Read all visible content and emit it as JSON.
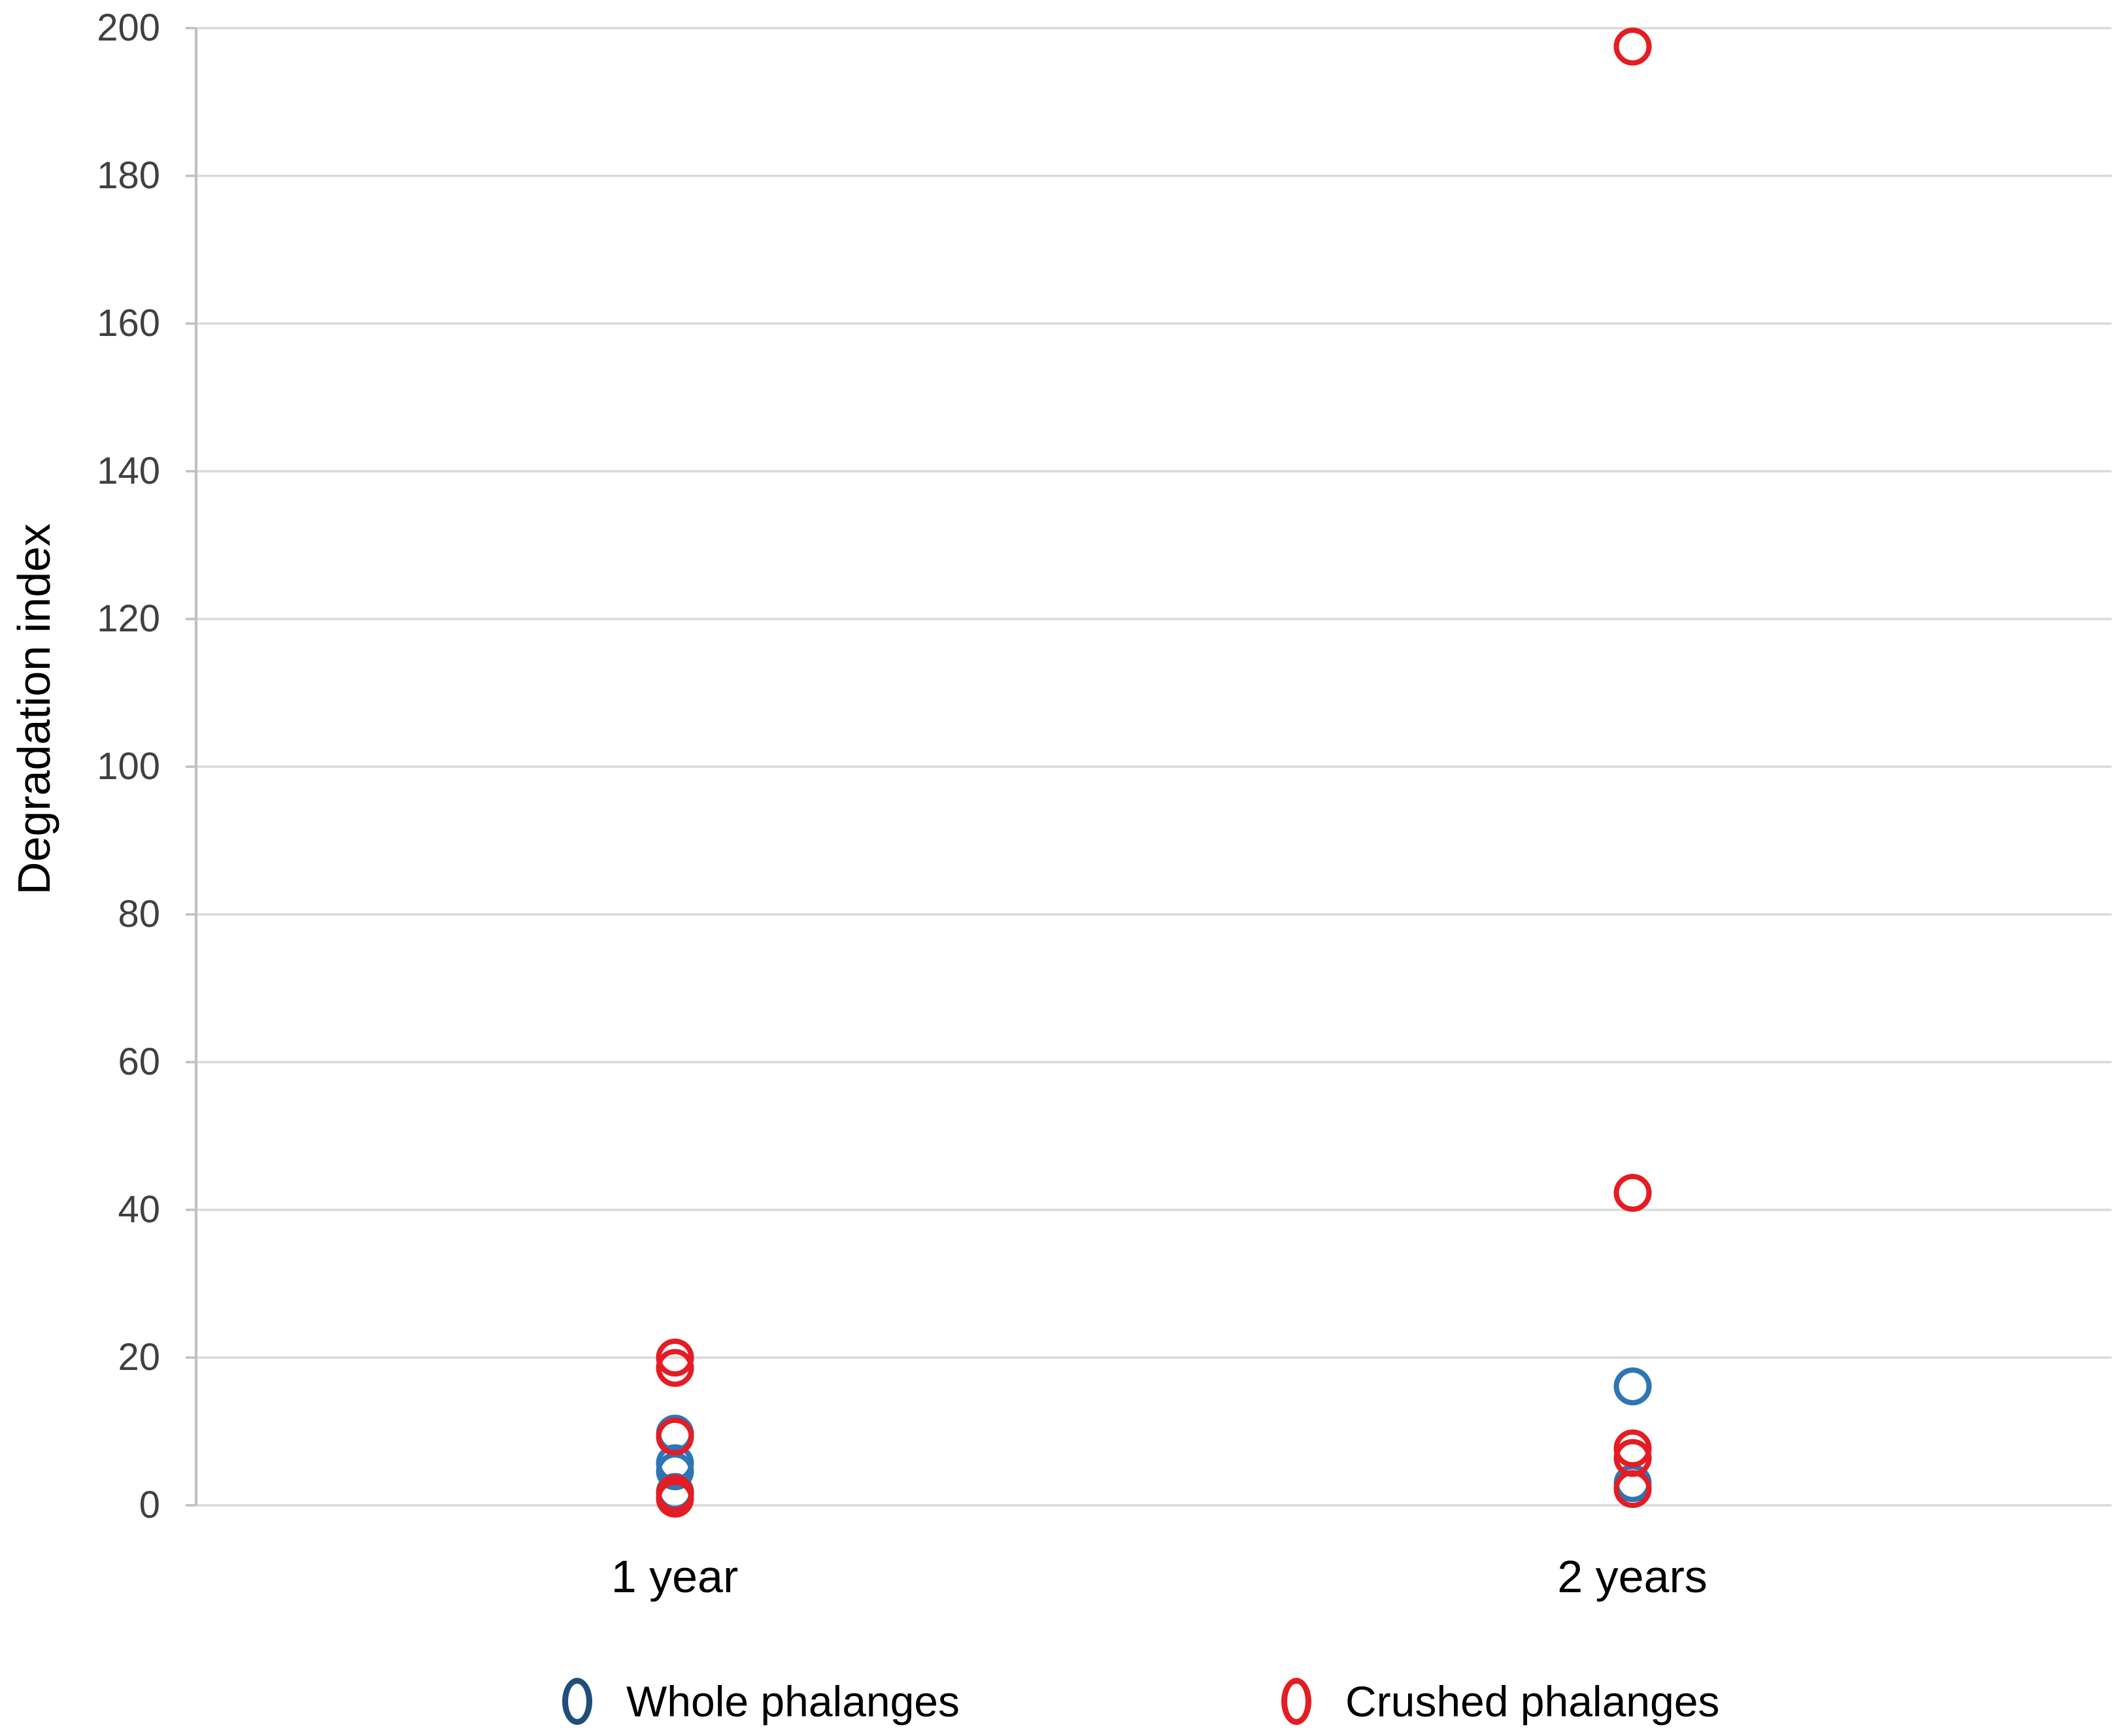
{
  "chart_data": {
    "type": "scatter",
    "title": "",
    "xlabel": "",
    "ylabel": "Degradation index",
    "categories": [
      "1 year",
      "2 years"
    ],
    "y_axis": {
      "min": 0,
      "max": 200,
      "step": 20
    },
    "grid": true,
    "legend_position": "bottom",
    "colors": {
      "gridline": "#d9d9d9",
      "axis_line": "#bfbfbf",
      "tick_text": "#404040",
      "label_text": "#000000"
    },
    "series": [
      {
        "name": "Whole phalanges",
        "color": "#2e75b6",
        "legend_color": "#1f4e79",
        "points": [
          {
            "category_index": 0,
            "value": 9.7
          },
          {
            "category_index": 0,
            "value": 5.7
          },
          {
            "category_index": 0,
            "value": 4.6
          },
          {
            "category_index": 0,
            "value": 1.8
          },
          {
            "category_index": 1,
            "value": 16.1
          },
          {
            "category_index": 1,
            "value": 3.0
          }
        ]
      },
      {
        "name": "Crushed phalanges",
        "color": "#e41c23",
        "legend_color": "#e41c23",
        "points": [
          {
            "category_index": 0,
            "value": 20.0
          },
          {
            "category_index": 0,
            "value": 18.6
          },
          {
            "category_index": 0,
            "value": 9.3
          },
          {
            "category_index": 0,
            "value": 1.6
          },
          {
            "category_index": 0,
            "value": 0.9
          },
          {
            "category_index": 1,
            "value": 197.5
          },
          {
            "category_index": 1,
            "value": 42.3
          },
          {
            "category_index": 1,
            "value": 7.7
          },
          {
            "category_index": 1,
            "value": 6.4
          },
          {
            "category_index": 1,
            "value": 2.2
          }
        ]
      }
    ]
  }
}
